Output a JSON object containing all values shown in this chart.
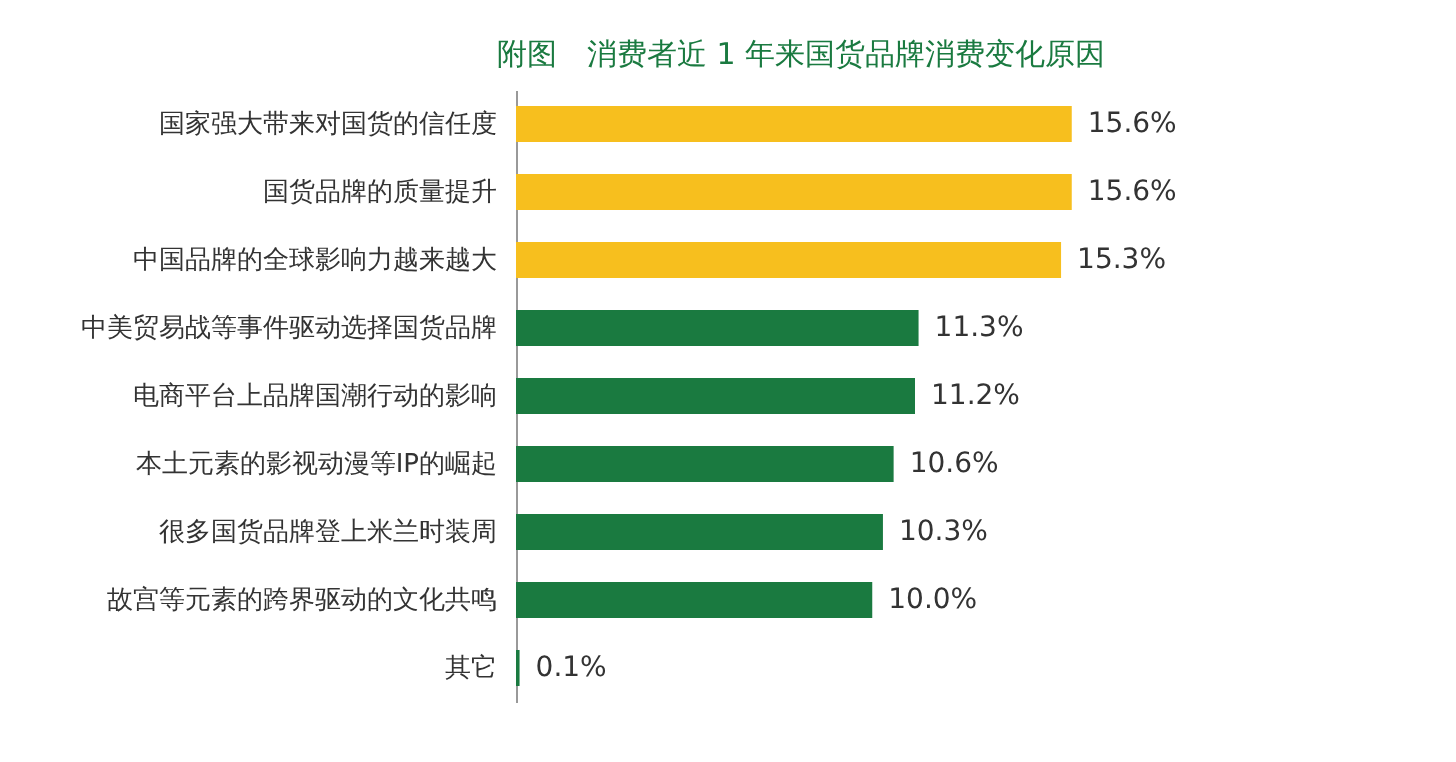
{
  "chart_data": {
    "type": "bar",
    "orientation": "horizontal",
    "title": "附图　消费者近 1 年来国货品牌消费变化原因",
    "categories": [
      "国家强大带来对国货的信任度",
      "国货品牌的质量提升",
      "中国品牌的全球影响力越来越大",
      "中美贸易战等事件驱动选择国货品牌",
      "电商平台上品牌国潮行动的影响",
      "本土元素的影视动漫等IP的崛起",
      "很多国货品牌登上米兰时装周",
      "故宫等元素的跨界驱动的文化共鸣",
      "其它"
    ],
    "values": [
      15.6,
      15.6,
      15.3,
      11.3,
      11.2,
      10.6,
      10.3,
      10.0,
      0.1
    ],
    "colors": [
      "#f7bf1e",
      "#f7bf1e",
      "#f7bf1e",
      "#1a7a40",
      "#1a7a40",
      "#1a7a40",
      "#1a7a40",
      "#1a7a40",
      "#1a7a40"
    ],
    "value_labels": [
      "15.6%",
      "15.6%",
      "15.3%",
      "11.3%",
      "11.2%",
      "10.6%",
      "10.3%",
      "10.0%",
      "0.1%"
    ],
    "tick_labels": "y",
    "grid": false,
    "legend": false
  }
}
